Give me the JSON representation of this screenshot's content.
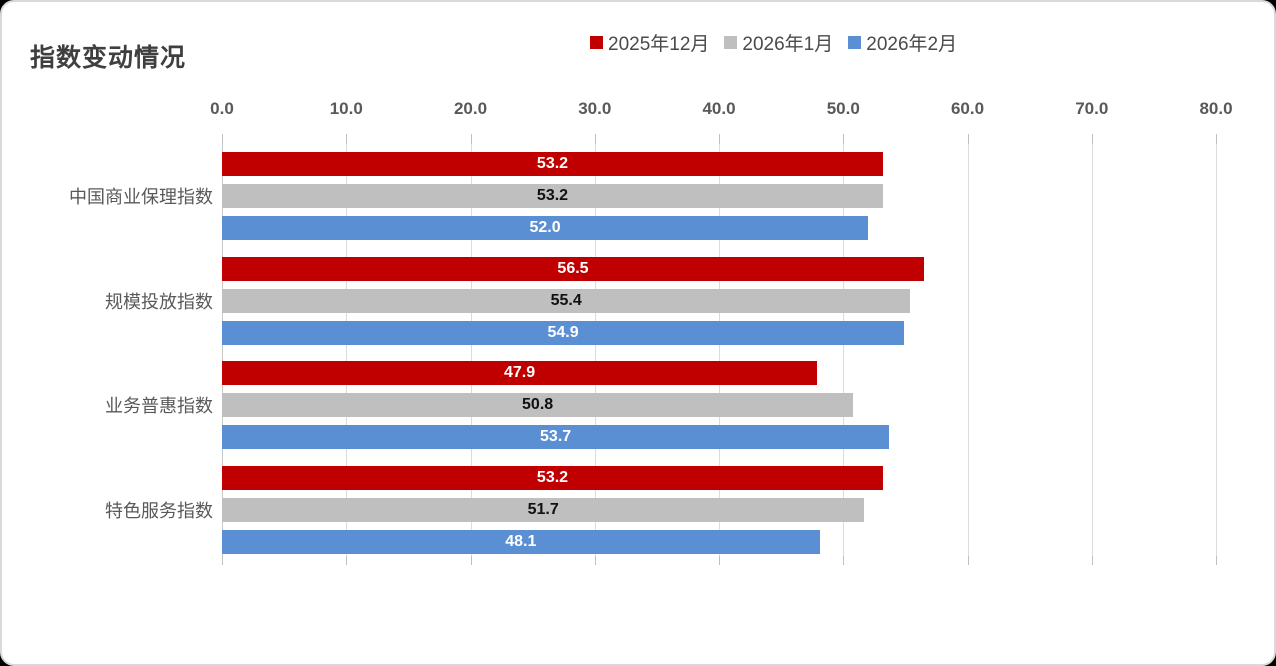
{
  "title": "指数变动情况",
  "chart_data": {
    "type": "bar",
    "orientation": "horizontal",
    "title": "指数变动情况",
    "categories": [
      "中国商业保理指数",
      "规模投放指数",
      "业务普惠指数",
      "特色服务指数"
    ],
    "series": [
      {
        "name": "2025年12月",
        "color": "#c00000",
        "label_color": "#ffffff",
        "values": [
          53.2,
          56.5,
          47.9,
          53.2
        ]
      },
      {
        "name": "2026年1月",
        "color": "#bfbfbf",
        "label_color": "#111111",
        "values": [
          53.2,
          55.4,
          50.8,
          51.7
        ]
      },
      {
        "name": "2026年2月",
        "color": "#5b8fd4",
        "label_color": "#ffffff",
        "values": [
          52.0,
          54.9,
          53.7,
          48.1
        ]
      }
    ],
    "xlim": [
      0,
      80
    ],
    "x_ticks": [
      "0.0",
      "10.0",
      "20.0",
      "30.0",
      "40.0",
      "50.0",
      "60.0",
      "70.0",
      "80.0"
    ],
    "grid": true,
    "legend_position": "top",
    "value_labels": "inside-center",
    "colors": {
      "background": "#ffffff",
      "border": "#d9d9d9",
      "gridline": "#dcdcdc",
      "axis_text": "#595959",
      "title_text": "#3f3f3f"
    }
  }
}
